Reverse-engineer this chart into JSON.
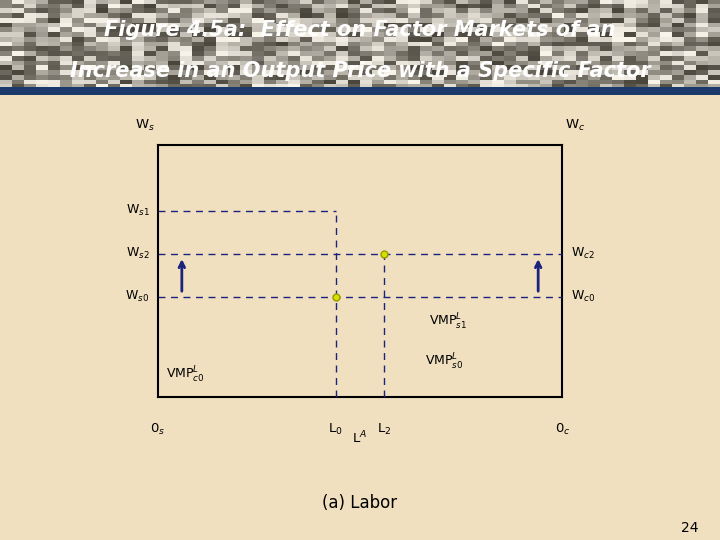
{
  "bg_color": "#f0e0c0",
  "header_bg": "#555555",
  "title_line1": "Figure 4.5a:  Effect on Factor Markets of an",
  "title_line2": "Increase in an Output Price with a Specific Factor",
  "title_color": "#ffffff",
  "title_fontsize": 15,
  "cyan_color": "#00ccee",
  "orange_color": "#e8b84b",
  "dashed_color": "#1a237e",
  "ws_label": "W$_s$",
  "wc_label": "W$_c$",
  "ws1_label": "W$_{s1}$",
  "ws2_label": "W$_{s2}$",
  "ws0_label": "W$_{s0}$",
  "wc2_label": "W$_{c2}$",
  "wc0_label": "W$_{c0}$",
  "vmps1_label": "VMP$^L_{s1}$",
  "vmps0_label": "VMP$^L_{s0}$",
  "vmpc0_label": "VMP$^L_{c0}$",
  "os_label": "0$_s$",
  "oc_label": "0$_c$",
  "l0_label": "L$_0$",
  "l2_label": "L$_2$",
  "la_label": "L$^A$",
  "labor_label": "(a) Labor",
  "page_num": "24",
  "L0_n": 0.44,
  "L2_n": 0.56,
  "Ws1_n": 0.74,
  "Ws2_n": 0.57,
  "Ws0_n": 0.4,
  "slope_cyan": -1.35,
  "slope_orange": 1.0
}
